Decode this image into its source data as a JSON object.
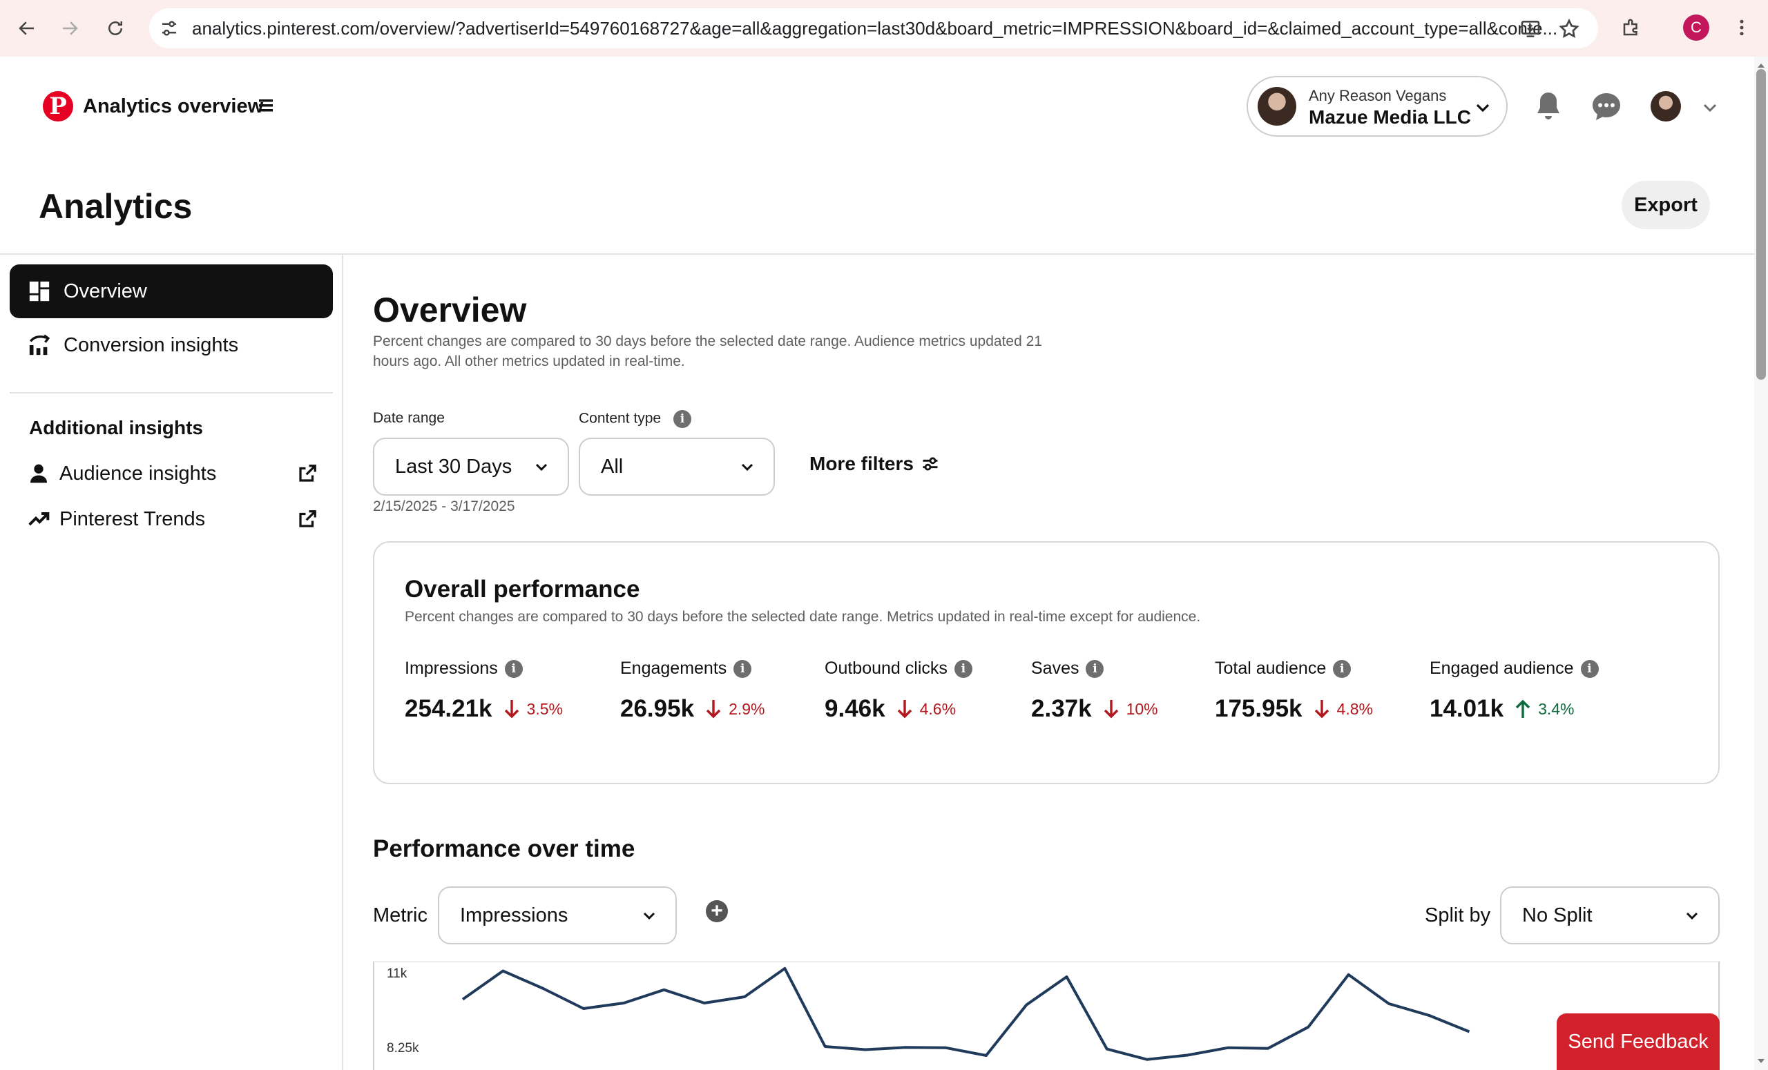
{
  "browser": {
    "url": "analytics.pinterest.com/overview/?advertiserId=549760168727&age=all&aggregation=last30d&board_metric=IMPRESSION&board_id=&claimed_account_type=all&conte...",
    "profile_initial": "C"
  },
  "header": {
    "app_title": "Analytics overview",
    "account": {
      "sub": "Any Reason Vegans",
      "main": "Mazue Media LLC"
    }
  },
  "page": {
    "title": "Analytics",
    "export_label": "Export"
  },
  "sidebar": {
    "items": [
      {
        "label": "Overview",
        "icon": "grid-icon"
      },
      {
        "label": "Conversion insights",
        "icon": "chart-icon"
      }
    ],
    "additional_heading": "Additional insights",
    "links": [
      {
        "label": "Audience insights",
        "icon": "person-icon"
      },
      {
        "label": "Pinterest Trends",
        "icon": "trend-icon"
      }
    ]
  },
  "overview": {
    "title": "Overview",
    "description": "Percent changes are compared to 30 days before the selected date range. Audience metrics updated 21 hours ago. All other metrics updated in real-time.",
    "filters": {
      "date_range_label": "Date range",
      "date_range_value": "Last 30 Days",
      "content_type_label": "Content type",
      "content_type_value": "All",
      "more_filters": "More filters",
      "date_text": "2/15/2025 - 3/17/2025"
    }
  },
  "performance": {
    "title": "Overall performance",
    "description": "Percent changes are compared to 30 days before the selected date range. Metrics updated in real-time except for audience.",
    "metrics": [
      {
        "name": "Impressions",
        "value": "254.21k",
        "change": "3.5%",
        "direction": "down"
      },
      {
        "name": "Engagements",
        "value": "26.95k",
        "change": "2.9%",
        "direction": "down"
      },
      {
        "name": "Outbound clicks",
        "value": "9.46k",
        "change": "4.6%",
        "direction": "down"
      },
      {
        "name": "Saves",
        "value": "2.37k",
        "change": "10%",
        "direction": "down"
      },
      {
        "name": "Total audience",
        "value": "175.95k",
        "change": "4.8%",
        "direction": "down"
      },
      {
        "name": "Engaged audience",
        "value": "14.01k",
        "change": "3.4%",
        "direction": "up"
      }
    ]
  },
  "over_time": {
    "title": "Performance over time",
    "metric_label": "Metric",
    "metric_value": "Impressions",
    "split_label": "Split by",
    "split_value": "No Split"
  },
  "chart_data": {
    "type": "line",
    "series": [
      {
        "values": [
          9800,
          10720,
          10150,
          9500,
          9680,
          10110,
          9680,
          9880,
          10800,
          8270,
          8170,
          8240,
          8230,
          7980,
          9620,
          10530,
          8190,
          7850,
          7990,
          8230,
          8210,
          8900,
          10600,
          9660,
          9280,
          8750
        ]
      }
    ],
    "y_ticks": [
      "11k",
      "8.25k"
    ],
    "ylim": [
      7800,
      11000
    ],
    "line_color": "#1f3a5a"
  },
  "send_feedback": "Send Feedback",
  "colors": {
    "brand": "#e60023",
    "down": "#b3171e",
    "up": "#0c6b3e",
    "feedback": "#d1222c"
  }
}
